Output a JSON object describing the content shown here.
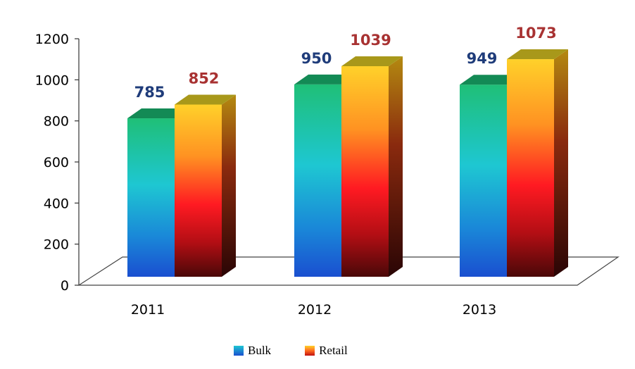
{
  "chart_data": {
    "type": "bar",
    "categories": [
      "2011",
      "2012",
      "2013"
    ],
    "series": [
      {
        "name": "Bulk",
        "values": [
          785,
          950,
          949
        ]
      },
      {
        "name": "Retail",
        "values": [
          852,
          1039,
          1073
        ]
      }
    ],
    "ylim": [
      0,
      1200
    ],
    "yticks": [
      "0",
      "200",
      "400",
      "600",
      "800",
      "1000",
      "1200"
    ],
    "legend_position": "bottom",
    "grid": false,
    "style": "3d-gradient"
  },
  "colors": {
    "bulk_label": "#1f3c7a",
    "retail_label": "#a83232"
  }
}
